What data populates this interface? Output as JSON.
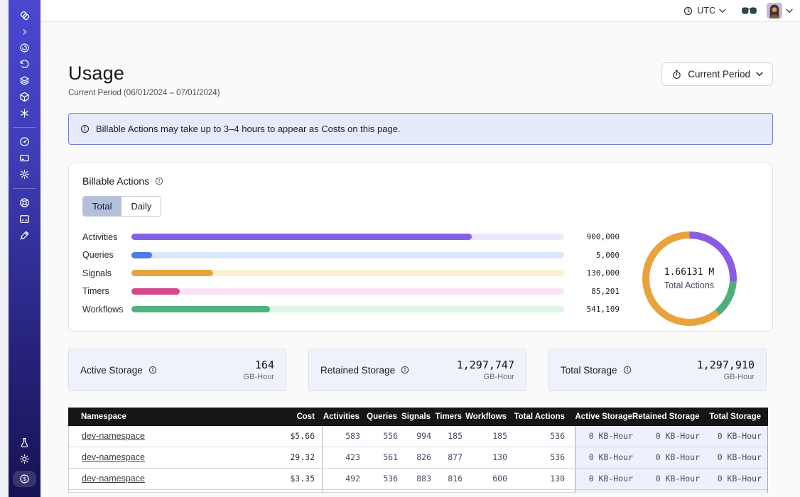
{
  "topbar": {
    "timezone": "UTC"
  },
  "page": {
    "title": "Usage",
    "subtitle": "Current Period (06/01/2024 – 07/01/2024)",
    "period_button": "Current Period"
  },
  "banner": {
    "text": "Billable Actions may take up to 3–4 hours to appear as Costs on this page."
  },
  "billable": {
    "title": "Billable Actions",
    "tabs": [
      {
        "label": "Total",
        "active": true
      },
      {
        "label": "Daily",
        "active": false
      }
    ]
  },
  "chart_data": [
    {
      "type": "bar",
      "orientation": "horizontal",
      "title": "Billable Actions — Total",
      "categories": [
        "Activities",
        "Queries",
        "Signals",
        "Timers",
        "Workflows"
      ],
      "values": [
        900000,
        5000,
        130000,
        85201,
        541109
      ],
      "value_labels": [
        "900,000",
        "5,000",
        "130,000",
        "85,201",
        "541,109"
      ],
      "fill_percent": [
        78.6,
        4.8,
        18.9,
        11.1,
        32.0
      ],
      "colors": [
        "#8761e4",
        "#4d7ce8",
        "#e8a33c",
        "#d6488a",
        "#4fb37e"
      ],
      "track_colors": [
        "#ede7fb",
        "#dbe6f9",
        "#faefcf",
        "#fae3f2",
        "#ddf6e8"
      ]
    },
    {
      "type": "pie",
      "title": "Total Actions breakdown",
      "center_value": "1.66131 M",
      "center_label": "Total Actions",
      "segments": [
        {
          "name": "purple-segment",
          "color": "#8a5ce6",
          "percent": 26
        },
        {
          "name": "green-segment",
          "color": "#4fae7e",
          "percent": 13
        },
        {
          "name": "orange-segment",
          "color": "#e9a33c",
          "percent": 61
        }
      ]
    }
  ],
  "storage_cards": [
    {
      "label": "Active Storage",
      "value": "164",
      "unit": "GB-Hour"
    },
    {
      "label": "Retained Storage",
      "value": "1,297,747",
      "unit": "GB-Hour"
    },
    {
      "label": "Total Storage",
      "value": "1,297,910",
      "unit": "GB-Hour"
    }
  ],
  "table": {
    "headers": [
      "Namespace",
      "Cost",
      "Activities",
      "Queries",
      "Signals",
      "Timers",
      "Workflows",
      "Total Actions",
      "Active Storage",
      "Retained Storage",
      "Total Storage"
    ],
    "rows": [
      {
        "namespace": "dev-namespace",
        "cost": "$5.66",
        "activities": "583",
        "queries": "556",
        "signals": "994",
        "timers": "185",
        "workflows": "185",
        "total_actions": "536",
        "active_storage": "0 KB-Hour",
        "retained_storage": "0 KB-Hour",
        "total_storage": "0 KB-Hour"
      },
      {
        "namespace": "dev-namespace",
        "cost": "29.32",
        "activities": "423",
        "queries": "561",
        "signals": "826",
        "timers": "877",
        "workflows": "130",
        "total_actions": "536",
        "active_storage": "0 KB-Hour",
        "retained_storage": "0 KB-Hour",
        "total_storage": "0 KB-Hour"
      },
      {
        "namespace": "dev-namespace",
        "cost": "$3.35",
        "activities": "492",
        "queries": "536",
        "signals": "883",
        "timers": "816",
        "workflows": "600",
        "total_actions": "130",
        "active_storage": "0 KB-Hour",
        "retained_storage": "0 KB-Hour",
        "total_storage": "0 KB-Hour"
      }
    ]
  },
  "sidebar": {
    "icons": [
      "temporal-logo",
      "chevron-right",
      "namespaces-spiral",
      "history-rotate",
      "layers",
      "cube",
      "asterisk",
      "gauge",
      "billing-card",
      "settings-gear",
      "life-buoy",
      "terminal-window",
      "rocket",
      "lab-flask",
      "theme-sun",
      "usage-coin"
    ]
  },
  "colors": {
    "sidebar_top": "#4a47d1",
    "sidebar_bottom": "#171253",
    "banner_bg": "#e6ebfb",
    "banner_border": "#6e7bd9",
    "table_header_bg": "#161616",
    "storage_cell_bg": "#edf1fb",
    "tab_active_bg": "#b2c0dc"
  }
}
